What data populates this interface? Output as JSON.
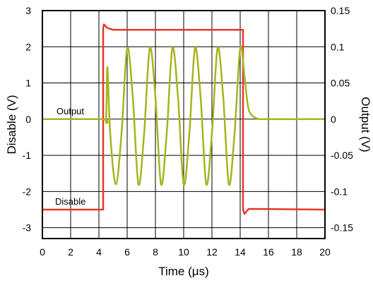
{
  "chart_data": {
    "type": "line",
    "xlabel": "Time",
    "xlabel_unit": "(μs)",
    "ylabel_left": "Disable (V)",
    "ylabel_right": "Output (V)",
    "xlim": [
      0,
      20
    ],
    "ylim_left": [
      -3.3,
      3
    ],
    "ylim_right": [
      -0.165,
      0.15
    ],
    "grid": true,
    "x_ticks": [
      "0",
      "2",
      "4",
      "6",
      "8",
      "10",
      "12",
      "14",
      "16",
      "18",
      "20"
    ],
    "y_left_ticks": [
      "3",
      "2",
      "1",
      "0",
      "-1",
      "-2",
      "-3"
    ],
    "y_right_ticks": [
      "0.15",
      "0.1",
      "0.05",
      "0",
      "-0.05",
      "-0.1",
      "-0.15"
    ],
    "series": [
      {
        "name": "Disable",
        "axis": "left",
        "color": "#e8362a",
        "x": [
          0,
          4.3,
          4.3,
          4.35,
          4.6,
          5.0,
          14.2,
          14.2,
          14.3,
          14.6,
          20
        ],
        "y": [
          -2.5,
          -2.5,
          2.5,
          2.62,
          2.52,
          2.47,
          2.47,
          -2.5,
          -2.62,
          -2.48,
          -2.5
        ]
      },
      {
        "name": "Output",
        "axis": "right",
        "color": "#a7b41d",
        "x": [
          0,
          4.2,
          4.5,
          4.6,
          4.8,
          5.2,
          5.6,
          6.0,
          6.4,
          6.8,
          7.2,
          7.6,
          8.0,
          8.4,
          8.8,
          9.2,
          9.6,
          10.0,
          10.4,
          10.8,
          11.2,
          11.6,
          12.0,
          12.4,
          12.8,
          13.2,
          13.6,
          14.0,
          14.3,
          14.55,
          14.8,
          15.2,
          15.6,
          20
        ],
        "y": [
          0,
          0,
          0,
          0.072,
          -0.02,
          -0.09,
          -0.02,
          0.098,
          0.03,
          -0.09,
          -0.02,
          0.098,
          0.03,
          -0.09,
          -0.02,
          0.098,
          0.03,
          -0.09,
          -0.02,
          0.098,
          0.03,
          -0.09,
          -0.02,
          0.098,
          0.03,
          -0.09,
          -0.02,
          0.098,
          0.06,
          0.018,
          0.006,
          0.001,
          0,
          0
        ]
      }
    ],
    "annotations": [
      "Output",
      "Disable"
    ]
  }
}
